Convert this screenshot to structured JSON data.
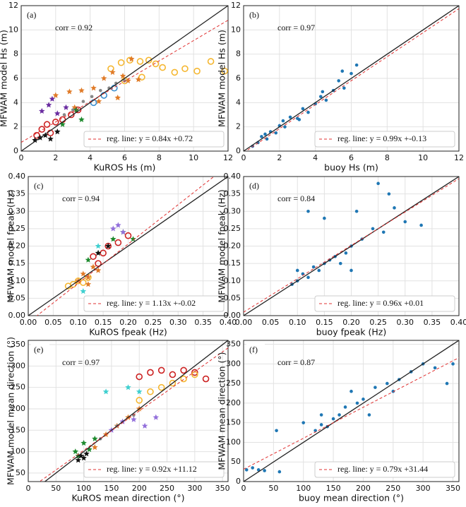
{
  "chart_data": [
    {
      "type": "scatter",
      "panel_label": "(a)",
      "annotation": "corr = 0.92",
      "xlabel": "KuROS Hs (m)",
      "ylabel": "MFWAM model Hs (m)",
      "xlim": [
        0,
        12
      ],
      "ylim": [
        0,
        12
      ],
      "xticks": [
        0,
        2,
        4,
        6,
        8,
        10,
        12
      ],
      "yticks": [
        0,
        2,
        4,
        6,
        8,
        10,
        12
      ],
      "grid": true,
      "regression": {
        "label": "reg. line: y = 0.84x +0.72",
        "slope": 0.84,
        "intercept": 0.72,
        "color": "#e03030"
      },
      "series": [
        {
          "color": "#f5b731",
          "marker": "circle-open",
          "x": [
            5.2,
            5.8,
            6.3,
            6.9,
            7.4,
            7.8,
            8.2,
            8.9,
            9.5,
            10.2,
            11.0,
            11.8,
            6.0,
            7.0
          ],
          "y": [
            6.8,
            7.3,
            7.5,
            7.4,
            7.5,
            7.2,
            6.9,
            6.5,
            6.8,
            6.6,
            7.4,
            6.6,
            5.8,
            6.1
          ]
        },
        {
          "color": "#e07b28",
          "marker": "star",
          "x": [
            2.0,
            2.8,
            3.5,
            4.2,
            4.8,
            5.3,
            5.6,
            6.2,
            6.8,
            3.1,
            4.5,
            5.9,
            6.4
          ],
          "y": [
            4.6,
            4.9,
            5.0,
            5.2,
            6.0,
            6.5,
            4.4,
            5.8,
            5.9,
            3.6,
            4.1,
            6.2,
            7.6
          ]
        },
        {
          "color": "#888888",
          "marker": "dot",
          "x": [
            2.5,
            3.0,
            3.6,
            4.1,
            4.6,
            5.1,
            5.5,
            6.0
          ],
          "y": [
            3.0,
            3.4,
            4.1,
            4.5,
            5.0,
            5.2,
            5.6,
            5.8
          ]
        },
        {
          "color": "#cc2222",
          "marker": "circle-open",
          "x": [
            0.9,
            1.2,
            1.5,
            2.0,
            2.4,
            2.9,
            3.3,
            1.7
          ],
          "y": [
            1.3,
            1.8,
            2.2,
            2.4,
            2.6,
            3.0,
            3.4,
            1.5
          ]
        },
        {
          "color": "#3a8fd0",
          "marker": "circle-open",
          "x": [
            4.2,
            4.8,
            5.4
          ],
          "y": [
            4.0,
            4.6,
            5.2
          ]
        },
        {
          "color": "#6a2ca0",
          "marker": "star",
          "x": [
            1.2,
            1.6,
            2.1,
            2.6,
            1.8
          ],
          "y": [
            3.3,
            3.8,
            3.1,
            3.6,
            4.3
          ]
        },
        {
          "color": "#111111",
          "marker": "star",
          "x": [
            0.8,
            1.1,
            1.4,
            1.7,
            2.1
          ],
          "y": [
            0.9,
            1.1,
            1.3,
            1.0,
            1.6
          ]
        },
        {
          "color": "#1e8a2e",
          "marker": "star",
          "x": [
            2.4,
            3.2,
            3.5
          ],
          "y": [
            2.2,
            3.4,
            2.6
          ]
        }
      ]
    },
    {
      "type": "scatter",
      "panel_label": "(b)",
      "annotation": "corr = 0.97",
      "xlabel": "buoy Hs (m)",
      "ylabel": "MFWAM model Hs (m)",
      "xlim": [
        0,
        12
      ],
      "ylim": [
        0,
        12
      ],
      "xticks": [
        0,
        2,
        4,
        6,
        8,
        10,
        12
      ],
      "yticks": [
        0,
        2,
        4,
        6,
        8,
        10,
        12
      ],
      "grid": true,
      "regression": {
        "label": "reg. line: y = 0.99x +-0.13",
        "slope": 0.99,
        "intercept": -0.13,
        "color": "#e03030"
      },
      "series": [
        {
          "color": "#1f77b4",
          "marker": "dot",
          "x": [
            0.5,
            0.8,
            1.0,
            1.3,
            1.5,
            1.8,
            2.0,
            2.3,
            2.6,
            3.0,
            3.3,
            3.6,
            4.0,
            4.3,
            4.6,
            5.0,
            5.3,
            5.6,
            6.0,
            6.3,
            1.2,
            2.2,
            3.1,
            4.4,
            5.5
          ],
          "y": [
            0.4,
            0.7,
            1.2,
            1.0,
            1.6,
            1.5,
            2.1,
            2.0,
            2.8,
            2.7,
            3.5,
            3.2,
            3.9,
            4.5,
            4.2,
            5.0,
            5.8,
            5.2,
            6.4,
            7.1,
            1.4,
            2.5,
            2.6,
            4.9,
            6.6
          ]
        }
      ]
    },
    {
      "type": "scatter",
      "panel_label": "(c)",
      "annotation": "corr = 0.94",
      "xlabel": "KuROS fpeak (Hz)",
      "ylabel": "MFWAM model fpeak (Hz)",
      "xlim": [
        0,
        0.4
      ],
      "ylim": [
        0,
        0.4
      ],
      "xticks": [
        {
          "value": 0,
          "label": "0.00"
        },
        0.05,
        {
          "value": 0.1,
          "label": "0.10"
        },
        0.15,
        {
          "value": 0.2,
          "label": "0.20"
        },
        0.25,
        {
          "value": 0.3,
          "label": "0.30"
        },
        0.35,
        {
          "value": 0.4,
          "label": "0.40"
        }
      ],
      "yticks": [
        {
          "value": 0,
          "label": "0.00"
        },
        0.05,
        {
          "value": 0.1,
          "label": "0.10"
        },
        0.15,
        {
          "value": 0.2,
          "label": "0.20"
        },
        0.25,
        {
          "value": 0.3,
          "label": "0.30"
        },
        0.35,
        {
          "value": 0.4,
          "label": "0.40"
        }
      ],
      "grid": true,
      "regression": {
        "label": "reg. line: y = 1.13x +-0.02",
        "slope": 1.13,
        "intercept": -0.02,
        "color": "#e03030"
      },
      "series": [
        {
          "color": "#f5b731",
          "marker": "circle-open",
          "x": [
            0.08,
            0.09,
            0.1,
            0.11,
            0.12
          ],
          "y": [
            0.085,
            0.09,
            0.1,
            0.095,
            0.11
          ]
        },
        {
          "color": "#e07b28",
          "marker": "star",
          "x": [
            0.1,
            0.11,
            0.12,
            0.13,
            0.14,
            0.12
          ],
          "y": [
            0.1,
            0.12,
            0.11,
            0.14,
            0.13,
            0.09
          ]
        },
        {
          "color": "#cc2222",
          "marker": "circle-open",
          "x": [
            0.13,
            0.15,
            0.16,
            0.18,
            0.2,
            0.14
          ],
          "y": [
            0.17,
            0.18,
            0.2,
            0.21,
            0.23,
            0.15
          ]
        },
        {
          "color": "#1e8a2e",
          "marker": "star",
          "x": [
            0.12,
            0.14,
            0.17,
            0.19,
            0.21
          ],
          "y": [
            0.16,
            0.18,
            0.22,
            0.24,
            0.22
          ]
        },
        {
          "color": "#9370db",
          "marker": "star",
          "x": [
            0.17,
            0.18,
            0.19
          ],
          "y": [
            0.25,
            0.26,
            0.24
          ]
        },
        {
          "color": "#40d0d0",
          "marker": "star",
          "x": [
            0.11,
            0.14
          ],
          "y": [
            0.07,
            0.2
          ]
        },
        {
          "color": "#111111",
          "marker": "star",
          "x": [
            0.14,
            0.16
          ],
          "y": [
            0.18,
            0.2
          ]
        }
      ]
    },
    {
      "type": "scatter",
      "panel_label": "(d)",
      "annotation": "corr = 0.84",
      "xlabel": "buoy fpeak (Hz)",
      "ylabel": "MFWAM model fpeak (Hz)",
      "xlim": [
        0,
        0.4
      ],
      "ylim": [
        0,
        0.4
      ],
      "xticks": [
        {
          "value": 0,
          "label": "0.00"
        },
        0.05,
        {
          "value": 0.1,
          "label": "0.10"
        },
        0.15,
        {
          "value": 0.2,
          "label": "0.20"
        },
        0.25,
        {
          "value": 0.3,
          "label": "0.30"
        },
        0.35,
        {
          "value": 0.4,
          "label": "0.40"
        }
      ],
      "yticks": [
        {
          "value": 0,
          "label": "0.00"
        },
        0.05,
        {
          "value": 0.1,
          "label": "0.10"
        },
        0.15,
        {
          "value": 0.2,
          "label": "0.20"
        },
        0.25,
        {
          "value": 0.3,
          "label": "0.30"
        },
        0.35,
        {
          "value": 0.4,
          "label": "0.40"
        }
      ],
      "grid": true,
      "regression": {
        "label": "reg. line: y = 0.96x +0.01",
        "slope": 0.96,
        "intercept": 0.01,
        "color": "#e03030"
      },
      "series": [
        {
          "color": "#1f77b4",
          "marker": "dot",
          "x": [
            0.09,
            0.1,
            0.11,
            0.12,
            0.13,
            0.14,
            0.15,
            0.16,
            0.17,
            0.18,
            0.19,
            0.2,
            0.22,
            0.24,
            0.26,
            0.28,
            0.3,
            0.12,
            0.15,
            0.2,
            0.21,
            0.25,
            0.1,
            0.33,
            0.27
          ],
          "y": [
            0.09,
            0.1,
            0.12,
            0.11,
            0.14,
            0.13,
            0.15,
            0.16,
            0.17,
            0.15,
            0.18,
            0.2,
            0.22,
            0.25,
            0.24,
            0.31,
            0.27,
            0.3,
            0.28,
            0.13,
            0.3,
            0.38,
            0.13,
            0.26,
            0.35
          ]
        }
      ]
    },
    {
      "type": "scatter",
      "panel_label": "(e)",
      "annotation": "corr = 0.97",
      "xlabel": "KuROS mean direction (°)",
      "ylabel": "MFWAM model mean direction (°)",
      "xlim": [
        0,
        360
      ],
      "ylim": [
        30,
        360
      ],
      "xticks": [
        0,
        50,
        100,
        150,
        200,
        250,
        300,
        350
      ],
      "yticks": [
        50,
        100,
        150,
        200,
        250,
        300,
        350
      ],
      "grid": true,
      "regression": {
        "label": "reg. line: y = 0.92x +11.12",
        "slope": 0.92,
        "intercept": 11.12,
        "color": "#e03030"
      },
      "series": [
        {
          "color": "#cc2222",
          "marker": "circle-open",
          "x": [
            200,
            220,
            240,
            260,
            280,
            300,
            320
          ],
          "y": [
            275,
            285,
            290,
            280,
            290,
            285,
            270
          ]
        },
        {
          "color": "#f5b731",
          "marker": "circle-open",
          "x": [
            200,
            220,
            240,
            260,
            280,
            300
          ],
          "y": [
            220,
            240,
            250,
            260,
            270,
            280
          ]
        },
        {
          "color": "#e07b28",
          "marker": "star",
          "x": [
            120,
            140,
            160,
            180,
            200
          ],
          "y": [
            110,
            140,
            160,
            180,
            200
          ]
        },
        {
          "color": "#9370db",
          "marker": "star",
          "x": [
            150,
            170,
            190,
            210,
            230
          ],
          "y": [
            150,
            170,
            175,
            160,
            180
          ]
        },
        {
          "color": "#40d0d0",
          "marker": "star",
          "x": [
            140,
            180,
            200
          ],
          "y": [
            240,
            250,
            240
          ]
        },
        {
          "color": "#1e8a2e",
          "marker": "star",
          "x": [
            85,
            90,
            100,
            110,
            120
          ],
          "y": [
            100,
            90,
            120,
            105,
            130
          ]
        },
        {
          "color": "#111111",
          "marker": "star",
          "x": [
            90,
            95,
            100,
            105
          ],
          "y": [
            80,
            90,
            85,
            95
          ]
        },
        {
          "color": "#888888",
          "marker": "dot",
          "x": [
            130,
            160,
            190
          ],
          "y": [
            130,
            160,
            185
          ]
        }
      ]
    },
    {
      "type": "scatter",
      "panel_label": "(f)",
      "annotation": "corr = 0.87",
      "xlabel": "buoy mean direction (°)",
      "ylabel": "MFWAM mean direction (°)",
      "xlim": [
        0,
        360
      ],
      "ylim": [
        0,
        360
      ],
      "xticks": [
        0,
        50,
        100,
        150,
        200,
        250,
        300,
        350
      ],
      "yticks": [
        0,
        50,
        100,
        150,
        200,
        250,
        300,
        350
      ],
      "grid": true,
      "regression": {
        "label": "reg. line: y = 0.79x +31.44",
        "slope": 0.79,
        "intercept": 31.44,
        "color": "#e03030"
      },
      "series": [
        {
          "color": "#1f77b4",
          "marker": "dot",
          "x": [
            5,
            15,
            25,
            35,
            55,
            100,
            120,
            130,
            140,
            150,
            160,
            170,
            180,
            190,
            200,
            220,
            240,
            260,
            280,
            300,
            320,
            340,
            350,
            210,
            250,
            130,
            60
          ],
          "y": [
            30,
            35,
            30,
            28,
            130,
            150,
            130,
            145,
            140,
            160,
            170,
            190,
            230,
            200,
            210,
            240,
            250,
            260,
            280,
            300,
            290,
            250,
            300,
            170,
            230,
            170,
            25
          ]
        }
      ]
    }
  ]
}
